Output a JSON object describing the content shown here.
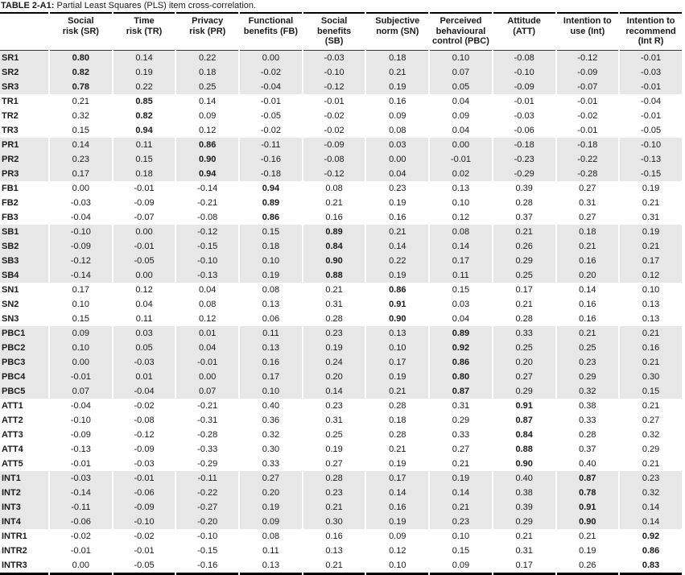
{
  "title": {
    "label": "TABLE 2-A1:",
    "text": "Partial Least Squares (PLS) item cross-correlation."
  },
  "table": {
    "columns": [
      "Social\nrisk (SR)",
      "Time\nrisk (TR)",
      "Privacy\nrisk (PR)",
      "Functional\nbenefits (FB)",
      "Social benefits\n(SB)",
      "Subjective\nnorm (SN)",
      "Perceived\nbehavioural\ncontrol (PBC)",
      "Attitude\n(ATT)",
      "Intention to\nuse (Int)",
      "Intention to\nrecommend\n(Int R)"
    ],
    "rows": [
      {
        "label": "SR1",
        "shade": true,
        "bold_col": 0,
        "values": [
          "0.80",
          "0.14",
          "0.22",
          "0.00",
          "-0.03",
          "0.18",
          "0.10",
          "-0.08",
          "-0.12",
          "-0.01"
        ]
      },
      {
        "label": "SR2",
        "shade": true,
        "bold_col": 0,
        "values": [
          "0.82",
          "0.19",
          "0.18",
          "-0.02",
          "-0.10",
          "0.21",
          "0.07",
          "-0.10",
          "-0.09",
          "-0.03"
        ]
      },
      {
        "label": "SR3",
        "shade": true,
        "bold_col": 0,
        "values": [
          "0.78",
          "0.22",
          "0.25",
          "-0.04",
          "-0.12",
          "0.19",
          "0.05",
          "-0.09",
          "-0.07",
          "-0.01"
        ]
      },
      {
        "label": "TR1",
        "shade": false,
        "bold_col": 1,
        "values": [
          "0.21",
          "0.85",
          "0.14",
          "-0.01",
          "-0.01",
          "0.16",
          "0.04",
          "-0.01",
          "-0.01",
          "-0.04"
        ]
      },
      {
        "label": "TR2",
        "shade": false,
        "bold_col": 1,
        "values": [
          "0.32",
          "0.82",
          "0.09",
          "-0.05",
          "-0.02",
          "0.09",
          "0.09",
          "-0.03",
          "-0.02",
          "-0.01"
        ]
      },
      {
        "label": "TR3",
        "shade": false,
        "bold_col": 1,
        "values": [
          "0.15",
          "0.94",
          "0.12",
          "-0.02",
          "-0.02",
          "0.08",
          "0.04",
          "-0.06",
          "-0.01",
          "-0.05"
        ]
      },
      {
        "label": "PR1",
        "shade": true,
        "bold_col": 2,
        "values": [
          "0.14",
          "0.11",
          "0.86",
          "-0.11",
          "-0.09",
          "0.03",
          "0.00",
          "-0.18",
          "-0.18",
          "-0.10"
        ]
      },
      {
        "label": "PR2",
        "shade": true,
        "bold_col": 2,
        "values": [
          "0.23",
          "0.15",
          "0.90",
          "-0.16",
          "-0.08",
          "0.00",
          "-0.01",
          "-0.23",
          "-0.22",
          "-0.13"
        ]
      },
      {
        "label": "PR3",
        "shade": true,
        "bold_col": 2,
        "values": [
          "0.17",
          "0.18",
          "0.94",
          "-0.18",
          "-0.12",
          "0.04",
          "0.02",
          "-0.29",
          "-0.28",
          "-0.15"
        ]
      },
      {
        "label": "FB1",
        "shade": false,
        "bold_col": 3,
        "values": [
          "0.00",
          "-0.01",
          "-0.14",
          "0.94",
          "0.08",
          "0.23",
          "0.13",
          "0.39",
          "0.27",
          "0.19"
        ]
      },
      {
        "label": "FB2",
        "shade": false,
        "bold_col": 3,
        "values": [
          "-0.03",
          "-0.09",
          "-0.21",
          "0.89",
          "0.21",
          "0.19",
          "0.10",
          "0.28",
          "0.31",
          "0.21"
        ]
      },
      {
        "label": "FB3",
        "shade": false,
        "bold_col": 3,
        "values": [
          "-0.04",
          "-0.07",
          "-0.08",
          "0.86",
          "0.16",
          "0.16",
          "0.12",
          "0.37",
          "0.27",
          "0.31"
        ]
      },
      {
        "label": "SB1",
        "shade": true,
        "bold_col": 4,
        "values": [
          "-0.10",
          "0.00",
          "-0.12",
          "0.15",
          "0.89",
          "0.21",
          "0.08",
          "0.21",
          "0.18",
          "0.19"
        ]
      },
      {
        "label": "SB2",
        "shade": true,
        "bold_col": 4,
        "values": [
          "-0.09",
          "-0.01",
          "-0.15",
          "0.18",
          "0.84",
          "0.14",
          "0.14",
          "0.26",
          "0.21",
          "0.21"
        ]
      },
      {
        "label": "SB3",
        "shade": true,
        "bold_col": 4,
        "values": [
          "-0.12",
          "-0.05",
          "-0.10",
          "0.10",
          "0.90",
          "0.22",
          "0.17",
          "0.29",
          "0.16",
          "0.17"
        ]
      },
      {
        "label": "SB4",
        "shade": true,
        "bold_col": 4,
        "values": [
          "-0.14",
          "0.00",
          "-0.13",
          "0.19",
          "0.88",
          "0.19",
          "0.11",
          "0.25",
          "0.20",
          "0.12"
        ]
      },
      {
        "label": "SN1",
        "shade": false,
        "bold_col": 5,
        "values": [
          "0.17",
          "0.12",
          "0.04",
          "0.08",
          "0.21",
          "0.86",
          "0.15",
          "0.17",
          "0.14",
          "0.10"
        ]
      },
      {
        "label": "SN2",
        "shade": false,
        "bold_col": 5,
        "values": [
          "0.10",
          "0.04",
          "0.08",
          "0.13",
          "0.31",
          "0.91",
          "0.03",
          "0.21",
          "0.16",
          "0.13"
        ]
      },
      {
        "label": "SN3",
        "shade": false,
        "bold_col": 5,
        "values": [
          "0.15",
          "0.11",
          "0.12",
          "0.06",
          "0.28",
          "0.90",
          "0.04",
          "0.28",
          "0.16",
          "0.13"
        ]
      },
      {
        "label": "PBC1",
        "shade": true,
        "bold_col": 6,
        "values": [
          "0.09",
          "0.03",
          "0.01",
          "0.11",
          "0.23",
          "0.13",
          "0.89",
          "0.33",
          "0.21",
          "0.21"
        ]
      },
      {
        "label": "PBC2",
        "shade": true,
        "bold_col": 6,
        "values": [
          "0.10",
          "0.05",
          "0.04",
          "0.13",
          "0.19",
          "0.10",
          "0.92",
          "0.25",
          "0.25",
          "0.16"
        ]
      },
      {
        "label": "PBC3",
        "shade": true,
        "bold_col": 6,
        "values": [
          "0.00",
          "-0.03",
          "-0.01",
          "0.16",
          "0.24",
          "0.17",
          "0.86",
          "0.20",
          "0.23",
          "0.21"
        ]
      },
      {
        "label": "PBC4",
        "shade": true,
        "bold_col": 6,
        "values": [
          "-0.01",
          "0.01",
          "0.00",
          "0.17",
          "0.20",
          "0.19",
          "0.80",
          "0.27",
          "0.29",
          "0.30"
        ]
      },
      {
        "label": "PBC5",
        "shade": true,
        "bold_col": 6,
        "values": [
          "0.07",
          "-0.04",
          "0.07",
          "0.10",
          "0.14",
          "0.21",
          "0.87",
          "0.29",
          "0.32",
          "0.15"
        ]
      },
      {
        "label": "ATT1",
        "shade": false,
        "bold_col": 7,
        "values": [
          "-0.04",
          "-0.02",
          "-0.21",
          "0.40",
          "0.23",
          "0.28",
          "0.31",
          "0.91",
          "0.38",
          "0.21"
        ]
      },
      {
        "label": "ATT2",
        "shade": false,
        "bold_col": 7,
        "values": [
          "-0.10",
          "-0.08",
          "-0.31",
          "0.36",
          "0.31",
          "0.18",
          "0.29",
          "0.87",
          "0.33",
          "0.27"
        ]
      },
      {
        "label": "ATT3",
        "shade": false,
        "bold_col": 7,
        "values": [
          "-0.09",
          "-0.12",
          "-0.28",
          "0.32",
          "0.25",
          "0.28",
          "0.33",
          "0.84",
          "0.28",
          "0.32"
        ]
      },
      {
        "label": "ATT4",
        "shade": false,
        "bold_col": 7,
        "values": [
          "-0.13",
          "-0.09",
          "-0.33",
          "0.30",
          "0.19",
          "0.21",
          "0.27",
          "0.88",
          "0.37",
          "0.29"
        ]
      },
      {
        "label": "ATT5",
        "shade": false,
        "bold_col": 7,
        "values": [
          "-0.01",
          "-0.03",
          "-0.29",
          "0.33",
          "0.27",
          "0.19",
          "0.21",
          "0.90",
          "0.40",
          "0.21"
        ]
      },
      {
        "label": "INT1",
        "shade": true,
        "bold_col": 8,
        "values": [
          "-0.03",
          "-0.01",
          "-0.11",
          "0.27",
          "0.28",
          "0.17",
          "0.19",
          "0.40",
          "0.87",
          "0.23"
        ]
      },
      {
        "label": "INT2",
        "shade": true,
        "bold_col": 8,
        "values": [
          "-0.14",
          "-0.06",
          "-0.22",
          "0.20",
          "0.23",
          "0.14",
          "0.14",
          "0.38",
          "0.78",
          "0.32"
        ]
      },
      {
        "label": "INT3",
        "shade": true,
        "bold_col": 8,
        "values": [
          "-0.11",
          "-0.09",
          "-0.27",
          "0.19",
          "0.21",
          "0.16",
          "0.21",
          "0.39",
          "0.91",
          "0.14"
        ]
      },
      {
        "label": "INT4",
        "shade": true,
        "bold_col": 8,
        "values": [
          "-0.06",
          "-0.10",
          "-0.20",
          "0.09",
          "0.30",
          "0.19",
          "0.23",
          "0.29",
          "0.90",
          "0.14"
        ]
      },
      {
        "label": "INTR1",
        "shade": false,
        "bold_col": 9,
        "values": [
          "-0.02",
          "-0.02",
          "-0.10",
          "0.08",
          "0.16",
          "0.09",
          "0.10",
          "0.21",
          "0.21",
          "0.92"
        ]
      },
      {
        "label": "INTR2",
        "shade": false,
        "bold_col": 9,
        "values": [
          "-0.01",
          "-0.01",
          "-0.15",
          "0.11",
          "0.13",
          "0.12",
          "0.15",
          "0.31",
          "0.19",
          "0.86"
        ]
      },
      {
        "label": "INTR3",
        "shade": false,
        "bold_col": 9,
        "values": [
          "0.00",
          "-0.05",
          "-0.16",
          "0.13",
          "0.21",
          "0.10",
          "0.09",
          "0.17",
          "0.26",
          "0.83"
        ]
      }
    ]
  },
  "colors": {
    "row_shade": "#e7e7e7",
    "border": "#000000",
    "text": "#1a1a1a"
  }
}
